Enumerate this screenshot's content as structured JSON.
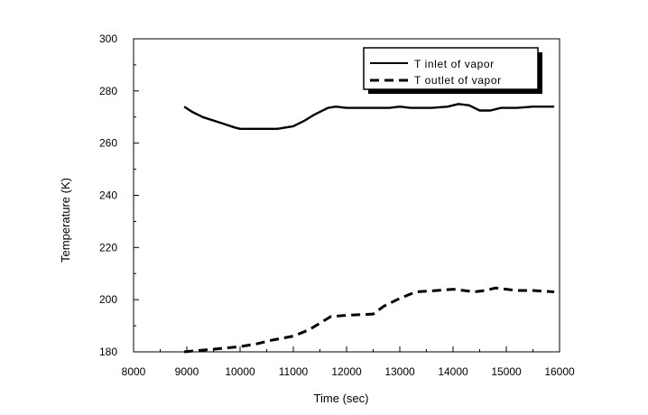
{
  "chart_data": {
    "type": "line",
    "title": "",
    "xlabel": "Time (sec)",
    "ylabel": "Temperature (K)",
    "xlim": [
      8000,
      16000
    ],
    "ylim": [
      180,
      300
    ],
    "xticks": [
      8000,
      9000,
      10000,
      11000,
      12000,
      13000,
      14000,
      15000,
      16000
    ],
    "yticks": [
      180,
      200,
      220,
      240,
      260,
      280,
      300
    ],
    "grid": false,
    "legend": "top-right",
    "series": [
      {
        "name": "T inlet of vapor",
        "style": "solid",
        "color": "#000000",
        "points": [
          [
            8950,
            274
          ],
          [
            9100,
            272
          ],
          [
            9300,
            270
          ],
          [
            9600,
            268
          ],
          [
            9900,
            266
          ],
          [
            10000,
            265.5
          ],
          [
            10300,
            265.5
          ],
          [
            10700,
            265.5
          ],
          [
            11000,
            266.5
          ],
          [
            11200,
            268.5
          ],
          [
            11400,
            271
          ],
          [
            11650,
            273.5
          ],
          [
            11800,
            274
          ],
          [
            12000,
            273.5
          ],
          [
            12300,
            273.5
          ],
          [
            12800,
            273.5
          ],
          [
            13000,
            274
          ],
          [
            13200,
            273.5
          ],
          [
            13600,
            273.5
          ],
          [
            13900,
            274
          ],
          [
            14100,
            275
          ],
          [
            14300,
            274.5
          ],
          [
            14500,
            272.5
          ],
          [
            14700,
            272.5
          ],
          [
            14900,
            273.5
          ],
          [
            15200,
            273.5
          ],
          [
            15500,
            274
          ],
          [
            15900,
            274
          ]
        ]
      },
      {
        "name": "T outlet of vapor",
        "style": "dashed",
        "color": "#000000",
        "points": [
          [
            8950,
            180
          ],
          [
            9200,
            180.5
          ],
          [
            9500,
            181
          ],
          [
            10000,
            182
          ],
          [
            10300,
            183
          ],
          [
            10600,
            184.5
          ],
          [
            11000,
            186
          ],
          [
            11300,
            188.5
          ],
          [
            11500,
            191
          ],
          [
            11700,
            193.5
          ],
          [
            12000,
            194
          ],
          [
            12500,
            194.5
          ],
          [
            12700,
            197.5
          ],
          [
            13000,
            200.5
          ],
          [
            13300,
            203
          ],
          [
            13700,
            203.5
          ],
          [
            14000,
            204
          ],
          [
            14200,
            203.5
          ],
          [
            14400,
            203
          ],
          [
            14600,
            203.5
          ],
          [
            14800,
            204.5
          ],
          [
            15000,
            204
          ],
          [
            15200,
            203.5
          ],
          [
            15500,
            203.5
          ],
          [
            15900,
            203
          ]
        ]
      }
    ]
  }
}
